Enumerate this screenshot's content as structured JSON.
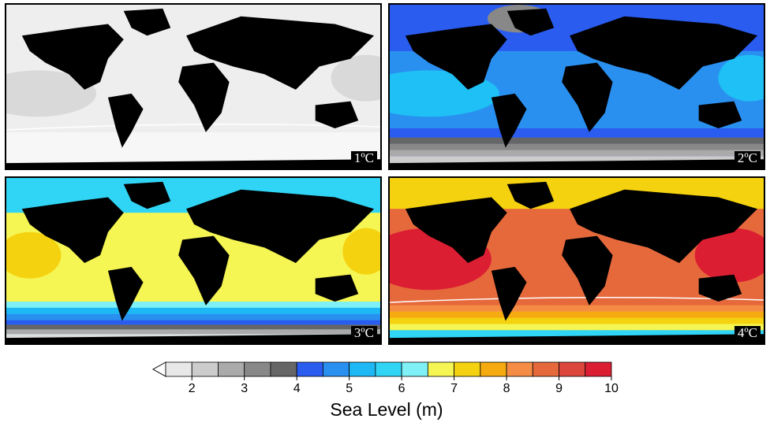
{
  "colorbar": {
    "title": "Sea Level (m)",
    "ticks": [
      "2",
      "3",
      "4",
      "5",
      "6",
      "7",
      "8",
      "9",
      "10"
    ],
    "colors": [
      "#e8e8e8",
      "#cccccc",
      "#aaaaaa",
      "#888888",
      "#666666",
      "#2a5cf0",
      "#2a90f0",
      "#1eb8f5",
      "#30d4f5",
      "#7ff0f5",
      "#f5f553",
      "#f5d20f",
      "#f5aa0f",
      "#f58c46",
      "#e6693c",
      "#dc463c",
      "#dc1e32"
    ]
  },
  "panels": [
    {
      "label": "1ºC",
      "ocean": "#eeeeee",
      "south": "#f6f6f6",
      "band": "#d8d8d8"
    },
    {
      "label": "2ºC",
      "ocean": "#1e90f0",
      "south": "#8a8a8a",
      "band": "#1ec0f5"
    },
    {
      "label": "3ºC",
      "ocean": "#f0f050",
      "south": "#1ec0f5",
      "band": "#f5d20f"
    },
    {
      "label": "4ºC",
      "ocean": "#e06040",
      "south": "#f5c020",
      "band": "#dc1e32"
    }
  ]
}
